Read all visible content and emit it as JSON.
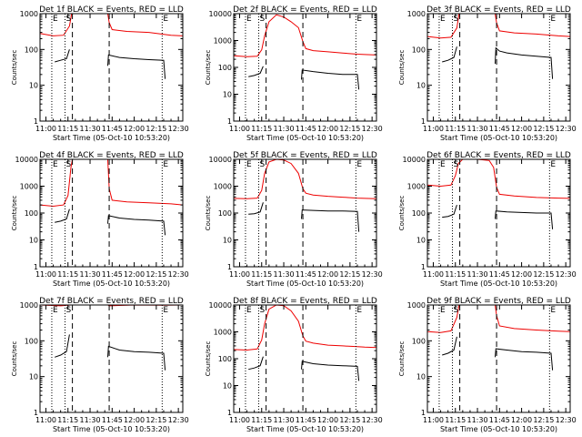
{
  "figure": {
    "xlabel": "Start Time (05-Oct-10 10:53:20)",
    "ylabel": "Counts/sec",
    "xticks": [
      {
        "t": 0,
        "label": "11:00"
      },
      {
        "t": 15,
        "label": "11:15"
      },
      {
        "t": 30,
        "label": "11:30"
      },
      {
        "t": 45,
        "label": "11:45"
      },
      {
        "t": 60,
        "label": "12:00"
      },
      {
        "t": 75,
        "label": "12:15"
      },
      {
        "t": 90,
        "label": "12:30"
      }
    ],
    "xlim_minutes_after_11_00": [
      -4,
      93
    ],
    "yscale": "log",
    "ylim": [
      1,
      10000
    ],
    "yticks": [
      "1",
      "10",
      "100",
      "1000",
      "10000"
    ],
    "marker_labels": {
      "E": "E",
      "S": "S"
    },
    "colors": {
      "events": "#000000",
      "lld": "#ee0000",
      "axes": "#000000"
    }
  },
  "chart_data": [
    {
      "type": "line",
      "title": "Det 1f BLACK = Events, RED = LLD",
      "ylim": [
        1,
        1000
      ],
      "yticks": [
        "1",
        "10",
        "100",
        "1000"
      ],
      "dotted_lines": [
        4,
        13,
        79
      ],
      "dashed_lines": [
        18,
        43
      ],
      "marker_E": [
        4,
        79
      ],
      "marker_S": 13,
      "series": [
        {
          "name": "Events",
          "color": "#000000",
          "segments": [
            {
              "x": [
                6,
                10,
                14,
                16
              ],
              "y": [
                45,
                50,
                55,
                100
              ]
            },
            {
              "x": [
                42,
                42.5,
                50,
                60,
                70,
                80,
                81
              ],
              "y": [
                35,
                70,
                60,
                55,
                52,
                50,
                15
              ]
            }
          ]
        },
        {
          "name": "LLD",
          "color": "#ee0000",
          "segments": [
            {
              "x": [
                -4,
                5,
                12,
                16,
                17.5,
                18,
                42,
                43,
                45,
                55,
                70,
                85,
                93
              ],
              "y": [
                280,
                240,
                250,
                450,
                1000,
                1000,
                1000,
                560,
                360,
                320,
                300,
                250,
                240
              ]
            }
          ]
        }
      ]
    },
    {
      "type": "line",
      "title": "Det 2f BLACK = Events, RED = LLD",
      "ylim": [
        1,
        10000
      ],
      "yticks": [
        "1",
        "10",
        "100",
        "1000",
        "10000"
      ],
      "dotted_lines": [
        4,
        13,
        79
      ],
      "dashed_lines": [
        18,
        43
      ],
      "marker_E": [
        4,
        79
      ],
      "marker_S": 13,
      "series": [
        {
          "name": "Events",
          "color": "#000000",
          "segments": [
            {
              "x": [
                6,
                10,
                14,
                16
              ],
              "y": [
                45,
                50,
                60,
                110
              ]
            },
            {
              "x": [
                42,
                42.5,
                50,
                60,
                70,
                80,
                81
              ],
              "y": [
                35,
                80,
                70,
                60,
                55,
                55,
                15
              ]
            }
          ]
        },
        {
          "name": "LLD",
          "color": "#ee0000",
          "segments": [
            {
              "x": [
                -4,
                5,
                12,
                15,
                17,
                20,
                25,
                30,
                35,
                40,
                43,
                45,
                50,
                60,
                70,
                80,
                85,
                93
              ],
              "y": [
                270,
                250,
                260,
                450,
                1500,
                5000,
                9000,
                7500,
                5000,
                3000,
                900,
                500,
                420,
                380,
                340,
                310,
                300,
                290
              ]
            }
          ]
        }
      ]
    },
    {
      "type": "line",
      "title": "Det 3f BLACK = Events, RED = LLD",
      "ylim": [
        1,
        1000
      ],
      "yticks": [
        "1",
        "10",
        "100",
        "1000"
      ],
      "dotted_lines": [
        4,
        13,
        79
      ],
      "dashed_lines": [
        18,
        43
      ],
      "marker_E": [
        4,
        79
      ],
      "marker_S": 13,
      "series": [
        {
          "name": "Events",
          "color": "#000000",
          "segments": [
            {
              "x": [
                6,
                10,
                14,
                16
              ],
              "y": [
                45,
                50,
                60,
                120
              ]
            },
            {
              "x": [
                42,
                42.5,
                45,
                50,
                60,
                70,
                80,
                81
              ],
              "y": [
                40,
                110,
                90,
                80,
                70,
                65,
                60,
                15
              ]
            }
          ]
        },
        {
          "name": "LLD",
          "color": "#ee0000",
          "segments": [
            {
              "x": [
                -4,
                5,
                12,
                16,
                17.5,
                18,
                42,
                43,
                45,
                55,
                70,
                85,
                93
              ],
              "y": [
                230,
                210,
                220,
                400,
                1000,
                1000,
                1000,
                550,
                330,
                290,
                270,
                240,
                230
              ]
            }
          ]
        }
      ]
    },
    {
      "type": "line",
      "title": "Det 4f BLACK = Events, RED = LLD",
      "ylim": [
        1,
        10000
      ],
      "yticks": [
        "1",
        "10",
        "100",
        "1000",
        "10000"
      ],
      "dotted_lines": [
        4,
        13,
        79
      ],
      "dashed_lines": [
        18,
        43
      ],
      "marker_E": [
        4,
        79
      ],
      "marker_S": 13,
      "series": [
        {
          "name": "Events",
          "color": "#000000",
          "segments": [
            {
              "x": [
                6,
                10,
                14,
                16
              ],
              "y": [
                45,
                50,
                60,
                140
              ]
            },
            {
              "x": [
                42,
                42.5,
                50,
                60,
                70,
                80,
                81
              ],
              "y": [
                40,
                80,
                65,
                58,
                55,
                50,
                15
              ]
            }
          ]
        },
        {
          "name": "LLD",
          "color": "#ee0000",
          "segments": [
            {
              "x": [
                -4,
                5,
                12,
                15,
                17,
                18,
                42,
                43,
                45,
                55,
                70,
                85,
                93
              ],
              "y": [
                200,
                180,
                200,
                450,
                5000,
                10000,
                10000,
                800,
                300,
                260,
                240,
                220,
                200
              ]
            }
          ]
        }
      ]
    },
    {
      "type": "line",
      "title": "Det 5f BLACK = Events, RED = LLD",
      "ylim": [
        1,
        10000
      ],
      "yticks": [
        "1",
        "10",
        "100",
        "1000",
        "10000"
      ],
      "dotted_lines": [
        4,
        13,
        79
      ],
      "dashed_lines": [
        18,
        43
      ],
      "marker_E": [
        4,
        79
      ],
      "marker_S": 13,
      "series": [
        {
          "name": "Events",
          "color": "#000000",
          "segments": [
            {
              "x": [
                6,
                10,
                14,
                16
              ],
              "y": [
                90,
                95,
                110,
                250
              ]
            },
            {
              "x": [
                42,
                42.5,
                50,
                60,
                70,
                80,
                81
              ],
              "y": [
                60,
                130,
                125,
                120,
                120,
                115,
                20
              ]
            }
          ]
        },
        {
          "name": "LLD",
          "color": "#ee0000",
          "segments": [
            {
              "x": [
                -4,
                5,
                12,
                15,
                17,
                20,
                25,
                30,
                35,
                40,
                43,
                45,
                50,
                60,
                70,
                80,
                85,
                93
              ],
              "y": [
                350,
                340,
                360,
                700,
                3000,
                8000,
                10000,
                9500,
                7000,
                3000,
                800,
                550,
                470,
                420,
                390,
                360,
                350,
                340
              ]
            }
          ]
        }
      ]
    },
    {
      "type": "line",
      "title": "Det 6f BLACK = Events, RED = LLD",
      "ylim": [
        1,
        10000
      ],
      "yticks": [
        "1",
        "10",
        "100",
        "1000",
        "10000"
      ],
      "dotted_lines": [
        4,
        13,
        79
      ],
      "dashed_lines": [
        18,
        43
      ],
      "marker_E": [
        4,
        79
      ],
      "marker_S": 13,
      "series": [
        {
          "name": "Events",
          "color": "#000000",
          "segments": [
            {
              "x": [
                6,
                10,
                14,
                16
              ],
              "y": [
                70,
                75,
                90,
                200
              ]
            },
            {
              "x": [
                42,
                42.5,
                50,
                60,
                70,
                80,
                81
              ],
              "y": [
                60,
                120,
                110,
                105,
                100,
                100,
                25
              ]
            }
          ]
        },
        {
          "name": "LLD",
          "color": "#ee0000",
          "segments": [
            {
              "x": [
                -4,
                5,
                12,
                15,
                17,
                20,
                30,
                38,
                41,
                43,
                45,
                55,
                70,
                85,
                93
              ],
              "y": [
                1100,
                1000,
                1100,
                2500,
                7000,
                10000,
                10000,
                9000,
                5000,
                900,
                500,
                430,
                380,
                360,
                350
              ]
            }
          ]
        }
      ]
    },
    {
      "type": "line",
      "title": "Det 7f BLACK = Events, RED = LLD",
      "ylim": [
        1,
        1000
      ],
      "yticks": [
        "1",
        "10",
        "100",
        "1000"
      ],
      "dotted_lines": [
        4,
        13,
        79
      ],
      "dashed_lines": [
        18,
        43
      ],
      "marker_E": [
        4,
        79
      ],
      "marker_S": 13,
      "series": [
        {
          "name": "Events",
          "color": "#000000",
          "segments": [
            {
              "x": [
                6,
                10,
                14,
                16
              ],
              "y": [
                35,
                40,
                50,
                150
              ]
            },
            {
              "x": [
                42,
                42.5,
                50,
                60,
                70,
                80,
                81
              ],
              "y": [
                35,
                70,
                55,
                50,
                48,
                45,
                15
              ]
            }
          ]
        },
        {
          "name": "LLD",
          "color": "#ee0000",
          "segments": [
            {
              "x": [
                -4,
                10,
                17,
                18,
                42,
                43,
                60,
                80,
                93
              ],
              "y": [
                1000,
                950,
                1000,
                1000,
                1000,
                950,
                1000,
                980,
                1000
              ]
            }
          ]
        }
      ]
    },
    {
      "type": "line",
      "title": "Det 8f BLACK = Events, RED = LLD",
      "ylim": [
        1,
        10000
      ],
      "yticks": [
        "1",
        "10",
        "100",
        "1000",
        "10000"
      ],
      "dotted_lines": [
        4,
        13,
        79
      ],
      "dashed_lines": [
        18,
        43
      ],
      "marker_E": [
        4,
        79
      ],
      "marker_S": 13,
      "series": [
        {
          "name": "Events",
          "color": "#000000",
          "segments": [
            {
              "x": [
                6,
                10,
                14,
                16
              ],
              "y": [
                40,
                45,
                55,
                120
              ]
            },
            {
              "x": [
                42,
                42.5,
                50,
                60,
                70,
                80,
                81
              ],
              "y": [
                40,
                80,
                65,
                58,
                55,
                52,
                15
              ]
            }
          ]
        },
        {
          "name": "LLD",
          "color": "#ee0000",
          "segments": [
            {
              "x": [
                -4,
                5,
                12,
                15,
                17,
                20,
                25,
                30,
                35,
                40,
                43,
                45,
                50,
                60,
                70,
                80,
                85,
                93
              ],
              "y": [
                220,
                210,
                230,
                500,
                2000,
                7000,
                10000,
                9500,
                6000,
                2500,
                700,
                450,
                380,
                320,
                300,
                280,
                270,
                260
              ]
            }
          ]
        }
      ]
    },
    {
      "type": "line",
      "title": "Det 9f BLACK = Events, RED = LLD",
      "ylim": [
        1,
        1000
      ],
      "yticks": [
        "1",
        "10",
        "100",
        "1000"
      ],
      "dotted_lines": [
        4,
        13,
        79
      ],
      "dashed_lines": [
        18,
        43
      ],
      "marker_E": [
        4,
        79
      ],
      "marker_S": 13,
      "series": [
        {
          "name": "Events",
          "color": "#000000",
          "segments": [
            {
              "x": [
                6,
                10,
                14,
                16
              ],
              "y": [
                40,
                45,
                55,
                130
              ]
            },
            {
              "x": [
                42,
                42.5,
                50,
                60,
                70,
                80,
                81
              ],
              "y": [
                35,
                60,
                55,
                50,
                48,
                45,
                15
              ]
            }
          ]
        },
        {
          "name": "LLD",
          "color": "#ee0000",
          "segments": [
            {
              "x": [
                -4,
                5,
                12,
                16,
                17.5,
                18,
                42,
                43,
                45,
                55,
                70,
                85,
                93
              ],
              "y": [
                180,
                170,
                190,
                450,
                1000,
                1000,
                1000,
                500,
                260,
                220,
                200,
                185,
                180
              ]
            }
          ]
        }
      ]
    }
  ]
}
